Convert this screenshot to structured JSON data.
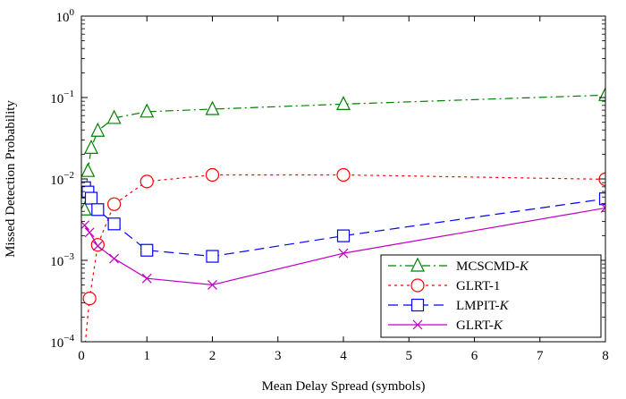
{
  "chart_data": {
    "type": "line",
    "title": "",
    "xlabel": "Mean Delay Spread (symbols)",
    "ylabel": "Missed Detection Probability",
    "xlim": [
      0,
      8
    ],
    "ylim": [
      0.0001,
      1
    ],
    "yscale": "log",
    "grid": false,
    "legend_position": "bottom-right",
    "x_ticks": [
      "0",
      "1",
      "2",
      "3",
      "4",
      "5",
      "6",
      "7",
      "8"
    ],
    "y_ticks": [
      {
        "base": "10",
        "exp": "0",
        "value": 1
      },
      {
        "base": "10",
        "exp": "−1",
        "value": 0.1
      },
      {
        "base": "10",
        "exp": "−2",
        "value": 0.01
      },
      {
        "base": "10",
        "exp": "−3",
        "value": 0.001
      },
      {
        "base": "10",
        "exp": "−4",
        "value": 0.0001
      }
    ],
    "series": [
      {
        "name": "MCSCMD-K",
        "legend_prefix": "MCSCMD-",
        "legend_italic": "K",
        "color": "#008000",
        "marker": "triangle",
        "dash": "dashdot",
        "x": [
          0.05,
          0.1,
          0.15,
          0.25,
          0.5,
          1,
          2,
          4,
          8
        ],
        "y": [
          0.0042,
          0.0125,
          0.024,
          0.039,
          0.056,
          0.067,
          0.072,
          0.083,
          0.107
        ]
      },
      {
        "name": "GLRT-1",
        "legend_prefix": "GLRT-1",
        "legend_italic": "",
        "color": "#ff0000",
        "marker": "circle",
        "dash": "dotted",
        "x": [
          0.05,
          0.125,
          0.25,
          0.5,
          1,
          2,
          4,
          8
        ],
        "y": [
          8e-05,
          0.00034,
          0.00155,
          0.0049,
          0.0093,
          0.0112,
          0.0112,
          0.0099
        ]
      },
      {
        "name": "LMPIT-K",
        "legend_prefix": "LMPIT-",
        "legend_italic": "K",
        "color": "#0000ff",
        "marker": "square",
        "dash": "dashed",
        "x": [
          0.05,
          0.1,
          0.15,
          0.25,
          0.5,
          1,
          2,
          4,
          8
        ],
        "y": [
          0.0078,
          0.0069,
          0.0058,
          0.0042,
          0.0028,
          0.00133,
          0.00112,
          0.002,
          0.0057
        ]
      },
      {
        "name": "GLRT-K",
        "legend_prefix": "GLRT-",
        "legend_italic": "K",
        "color": "#c000c0",
        "marker": "x",
        "dash": "solid",
        "x": [
          0.05,
          0.125,
          0.25,
          0.5,
          1,
          2,
          4,
          8
        ],
        "y": [
          0.0027,
          0.0022,
          0.0015,
          0.00105,
          0.0006,
          0.0005,
          0.00122,
          0.0044
        ]
      }
    ]
  }
}
